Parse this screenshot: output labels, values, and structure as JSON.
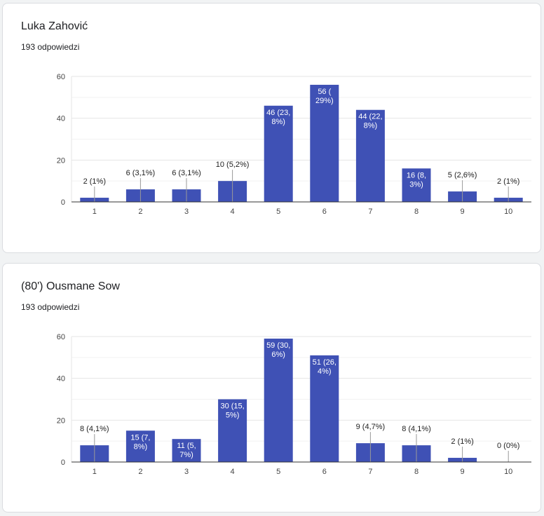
{
  "cards": [
    {
      "title": "Luka Zahović",
      "responses": "193 odpowiedzi",
      "chart_data": {
        "type": "bar",
        "categories": [
          "1",
          "2",
          "3",
          "4",
          "5",
          "6",
          "7",
          "8",
          "9",
          "10"
        ],
        "values": [
          2,
          6,
          6,
          10,
          46,
          56,
          44,
          16,
          5,
          2
        ],
        "data_labels": [
          "2 (1%)",
          "6 (3,1%)",
          "6 (3,1%)",
          "10 (5,2%)",
          "46 (23,\n8%)",
          "56 (\n29%)",
          "44 (22,\n8%)",
          "16 (8,\n3%)",
          "5 (2,6%)",
          "2 (1%)"
        ],
        "y_ticks": [
          "0",
          "20",
          "40",
          "60"
        ],
        "ylim": [
          0,
          60
        ],
        "grid": true,
        "color": "#3f51b5"
      }
    },
    {
      "title": "(80') Ousmane Sow",
      "responses": "193 odpowiedzi",
      "chart_data": {
        "type": "bar",
        "categories": [
          "1",
          "2",
          "3",
          "4",
          "5",
          "6",
          "7",
          "8",
          "9",
          "10"
        ],
        "values": [
          8,
          15,
          11,
          30,
          59,
          51,
          9,
          8,
          2,
          0
        ],
        "data_labels": [
          "8 (4,1%)",
          "15 (7,\n8%)",
          "11 (5,\n7%)",
          "30 (15,\n5%)",
          "59 (30,\n6%)",
          "51 (26,\n4%)",
          "9 (4,7%)",
          "8 (4,1%)",
          "2 (1%)",
          "0 (0%)"
        ],
        "y_ticks": [
          "0",
          "20",
          "40",
          "60"
        ],
        "ylim": [
          0,
          60
        ],
        "grid": true,
        "color": "#3f51b5"
      }
    }
  ]
}
